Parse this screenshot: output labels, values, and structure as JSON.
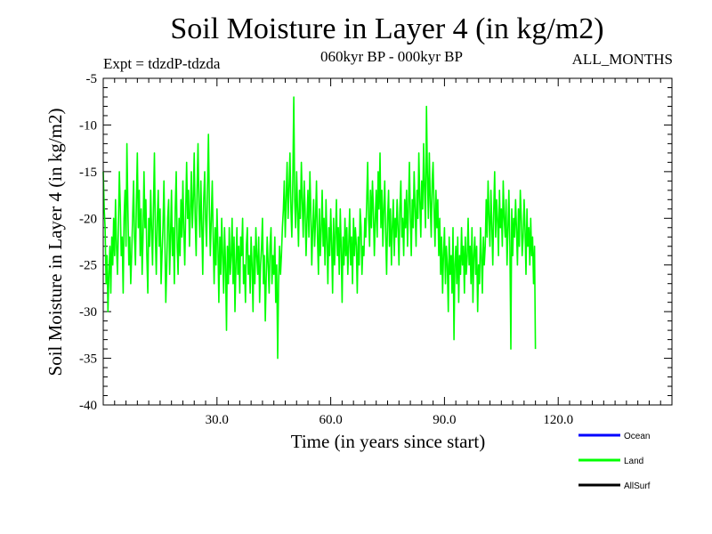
{
  "header": {
    "title": "Soil Moisture in Layer 4 (in kg/m2)",
    "experiment": "Expt = tdzdP-tdzda",
    "period": "060kyr BP - 000kyr BP",
    "months": "ALL_MONTHS"
  },
  "legend": [
    {
      "name": "Ocean",
      "color": "#0000ff"
    },
    {
      "name": "Land",
      "color": "#00ff00"
    },
    {
      "name": "AllSurf",
      "color": "#000000"
    }
  ],
  "chart_data": {
    "type": "line",
    "title": "Soil Moisture in Layer 4 (in kg/m2)",
    "xlabel": "Time (in years since start)",
    "ylabel": "Soil Moisture in Layer 4 (in kg/m2)",
    "xlim": [
      0,
      150
    ],
    "ylim": [
      -40,
      -5
    ],
    "x_ticks": [
      30,
      60,
      90,
      120
    ],
    "x_tick_labels": [
      "30.0",
      "60.0",
      "90.0",
      "120.0"
    ],
    "y_ticks": [
      -5,
      -10,
      -15,
      -20,
      -25,
      -30,
      -35,
      -40
    ],
    "y_tick_labels": [
      "-5",
      "-10",
      "-15",
      "-20",
      "-25",
      "-30",
      "-35",
      "-40"
    ],
    "grid": false,
    "series": [
      {
        "name": "Land",
        "color": "#00ff00",
        "x_start": 0,
        "x_step": 0.25,
        "values": [
          -15,
          -19,
          -21,
          -27,
          -24,
          -30,
          -26,
          -23,
          -28,
          -22,
          -25,
          -20,
          -24,
          -18,
          -23,
          -26,
          -21,
          -15,
          -19,
          -24,
          -22,
          -28,
          -20,
          -17,
          -23,
          -12,
          -19,
          -25,
          -22,
          -27,
          -24,
          -20,
          -16,
          -22,
          -25,
          -18,
          -13,
          -21,
          -17,
          -24,
          -19,
          -26,
          -22,
          -15,
          -21,
          -18,
          -24,
          -28,
          -20,
          -23,
          -17,
          -21,
          -25,
          -19,
          -13,
          -22,
          -26,
          -20,
          -17,
          -23,
          -19,
          -27,
          -24,
          -21,
          -16,
          -22,
          -29,
          -25,
          -20,
          -18,
          -26,
          -22,
          -17,
          -24,
          -21,
          -27,
          -19,
          -15,
          -23,
          -26,
          -20,
          -24,
          -18,
          -22,
          -16,
          -21,
          -25,
          -19,
          -14,
          -20,
          -17,
          -23,
          -19,
          -15,
          -21,
          -18,
          -13,
          -20,
          -24,
          -17,
          -12,
          -19,
          -22,
          -16,
          -21,
          -26,
          -18,
          -15,
          -20,
          -23,
          -17,
          -11,
          -19,
          -24,
          -20,
          -16,
          -22,
          -27,
          -21,
          -25,
          -19,
          -23,
          -29,
          -22,
          -26,
          -20,
          -24,
          -28,
          -21,
          -25,
          -32,
          -23,
          -27,
          -21,
          -26,
          -24,
          -20,
          -27,
          -22,
          -30,
          -25,
          -21,
          -26,
          -23,
          -28,
          -22,
          -24,
          -20,
          -27,
          -25,
          -29,
          -23,
          -21,
          -26,
          -24,
          -28,
          -22,
          -25,
          -30,
          -23,
          -27,
          -21,
          -24,
          -26,
          -22,
          -29,
          -25,
          -23,
          -20,
          -27,
          -24,
          -31,
          -26,
          -22,
          -25,
          -28,
          -23,
          -21,
          -27,
          -24,
          -26,
          -22,
          -29,
          -25,
          -35,
          -27,
          -23,
          -26,
          -24,
          -21,
          -19,
          -16,
          -22,
          -18,
          -14,
          -20,
          -17,
          -13,
          -19,
          -22,
          -16,
          -7,
          -18,
          -21,
          -15,
          -19,
          -23,
          -17,
          -20,
          -14,
          -18,
          -22,
          -16,
          -19,
          -24,
          -20,
          -17,
          -22,
          -15,
          -19,
          -25,
          -21,
          -18,
          -23,
          -20,
          -16,
          -22,
          -26,
          -19,
          -24,
          -21,
          -17,
          -23,
          -20,
          -25,
          -18,
          -22,
          -27,
          -21,
          -24,
          -19,
          -23,
          -28,
          -20,
          -25,
          -22,
          -18,
          -24,
          -21,
          -26,
          -19,
          -23,
          -29,
          -22,
          -25,
          -20,
          -24,
          -21,
          -26,
          -23,
          -19,
          -25,
          -22,
          -27,
          -20,
          -24,
          -21,
          -23,
          -28,
          -22,
          -25,
          -19,
          -21,
          -26,
          -23,
          -24,
          -20,
          -22,
          -18,
          -14,
          -20,
          -23,
          -17,
          -21,
          -16,
          -19,
          -24,
          -20,
          -17,
          -22,
          -15,
          -19,
          -13,
          -21,
          -17,
          -23,
          -19,
          -16,
          -22,
          -26,
          -20,
          -17,
          -23,
          -19,
          -25,
          -21,
          -18,
          -24,
          -20,
          -22,
          -18,
          -21,
          -25,
          -19,
          -16,
          -22,
          -20,
          -24,
          -18,
          -21,
          -17,
          -23,
          -19,
          -14,
          -20,
          -24,
          -18,
          -21,
          -15,
          -19,
          -23,
          -17,
          -20,
          -13,
          -18,
          -22,
          -16,
          -19,
          -12,
          -17,
          -21,
          -8,
          -15,
          -20,
          -13,
          -18,
          -22,
          -16,
          -14,
          -19,
          -23,
          -17,
          -21,
          -18,
          -24,
          -20,
          -26,
          -22,
          -28,
          -24,
          -21,
          -27,
          -23,
          -25,
          -30,
          -22,
          -26,
          -24,
          -28,
          -21,
          -33,
          -25,
          -23,
          -27,
          -22,
          -29,
          -24,
          -26,
          -21,
          -25,
          -23,
          -28,
          -22,
          -26,
          -24,
          -20,
          -25,
          -23,
          -27,
          -21,
          -29,
          -24,
          -22,
          -26,
          -23,
          -30,
          -25,
          -27,
          -21,
          -24,
          -28,
          -22,
          -25,
          -23,
          -18,
          -22,
          -16,
          -20,
          -23,
          -17,
          -21,
          -25,
          -19,
          -15,
          -22,
          -18,
          -20,
          -24,
          -17,
          -21,
          -19,
          -23,
          -16,
          -20,
          -22,
          -18,
          -25,
          -21,
          -17,
          -23,
          -34,
          -19,
          -24,
          -20,
          -22,
          -18,
          -21,
          -25,
          -19,
          -23,
          -17,
          -20,
          -24,
          -22,
          -18,
          -21,
          -26,
          -19,
          -23,
          -21,
          -25,
          -20,
          -24,
          -22,
          -27,
          -23,
          -34
        ]
      },
      {
        "name": "Ocean",
        "color": "#0000ff",
        "values": []
      },
      {
        "name": "AllSurf",
        "color": "#000000",
        "values": []
      }
    ]
  }
}
